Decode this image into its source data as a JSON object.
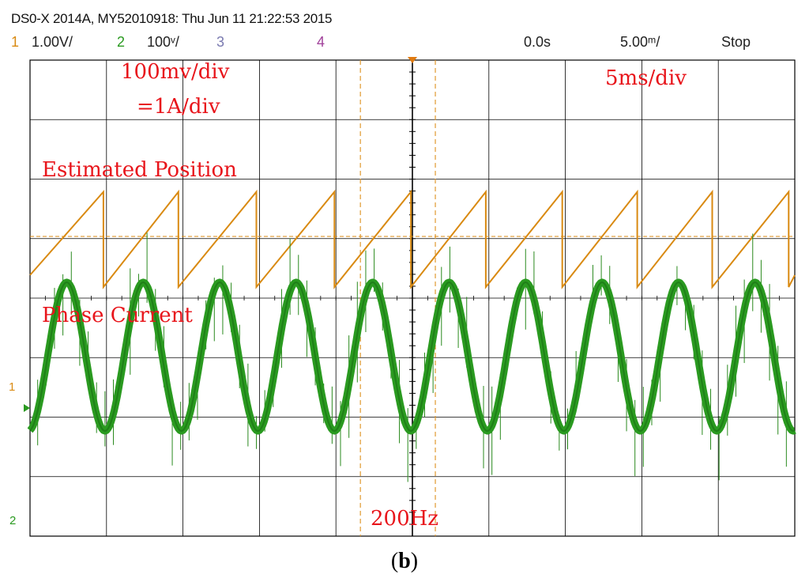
{
  "header": {
    "title": "DS0-X 2014A, MY52010918: Thu Jun 11 21:22:53 2015",
    "ch1_num": "1",
    "ch1_scale": "1.00V/",
    "ch2_num": "2",
    "ch2_scale": "100ᵛ/",
    "ch3_num": "3",
    "ch4_num": "4",
    "time_offset": "0.0s",
    "time_scale": "5.00ᵐ/",
    "run_state": "Stop"
  },
  "markers": {
    "ch1_marker": "1",
    "ch2_marker": "2"
  },
  "annotations": {
    "vdiv": "100mv/div",
    "adiv": "=1A/div",
    "tdiv": "5ms/div",
    "position_label": "Estimated Position",
    "current_label": "Phase Current",
    "freq_label": "200Hz"
  },
  "caption": {
    "letter": "b",
    "open": "(",
    "close": ")"
  },
  "colors": {
    "ch1": "#d98a12",
    "ch2": "#2a9a20",
    "ch3": "#7a7ab0",
    "ch4": "#a0409a",
    "annotation": "#e8151b",
    "grid": "#000000"
  },
  "chart_data": [
    {
      "type": "line",
      "title": "",
      "xlabel": "",
      "ylabel": "",
      "time_per_div_ms": 5,
      "volts_per_div": {
        "ch1": 1.0,
        "ch2": 0.1
      },
      "x_divisions": 10,
      "y_divisions": 8,
      "grid": true,
      "series": [
        {
          "name": "Estimated Position",
          "channel": 1,
          "waveform": "sawtooth",
          "x_ms": [
            -25,
            -20.2,
            -20.2,
            -15.3,
            -15.3,
            -10.2,
            -10.2,
            -5.1,
            -5.1,
            -0.1,
            -0.1,
            4.8,
            4.8,
            9.8,
            9.8,
            14.7,
            14.7,
            19.6,
            19.6,
            24.6,
            24.6,
            25
          ],
          "y_div": [
            -0.65,
            0.75,
            -0.85,
            0.75,
            -0.85,
            0.75,
            -0.85,
            0.75,
            -0.85,
            0.75,
            -0.85,
            0.75,
            -0.85,
            0.75,
            -0.85,
            0.75,
            -0.85,
            0.75,
            -0.85,
            0.75,
            -0.85,
            -0.65
          ]
        },
        {
          "name": "Phase Current",
          "channel": 2,
          "waveform": "sinusoid",
          "frequency_hz": 200,
          "peak_time_ms": [
            -22.6,
            -17.6,
            -12.7,
            -7.7,
            -2.8,
            2.1,
            7.0,
            11.9,
            16.9,
            21.7
          ],
          "peak_div": 2.3,
          "trough_div": -0.2,
          "x_ms": [
            -25,
            -22.6,
            -20.1,
            -17.6,
            -15.2,
            -12.7,
            -10.2,
            -7.7,
            -5.3,
            -2.8,
            -0.3,
            2.1,
            4.6,
            7.0,
            9.5,
            11.9,
            14.4,
            16.9,
            19.3,
            21.7,
            24.2,
            25
          ],
          "y_div": [
            0.0,
            2.3,
            -0.2,
            2.3,
            -0.2,
            2.3,
            -0.2,
            2.3,
            -0.2,
            2.3,
            -0.2,
            2.3,
            -0.2,
            2.3,
            -0.2,
            2.3,
            -0.2,
            2.3,
            -0.2,
            2.3,
            -0.2,
            0.2
          ]
        }
      ]
    }
  ]
}
